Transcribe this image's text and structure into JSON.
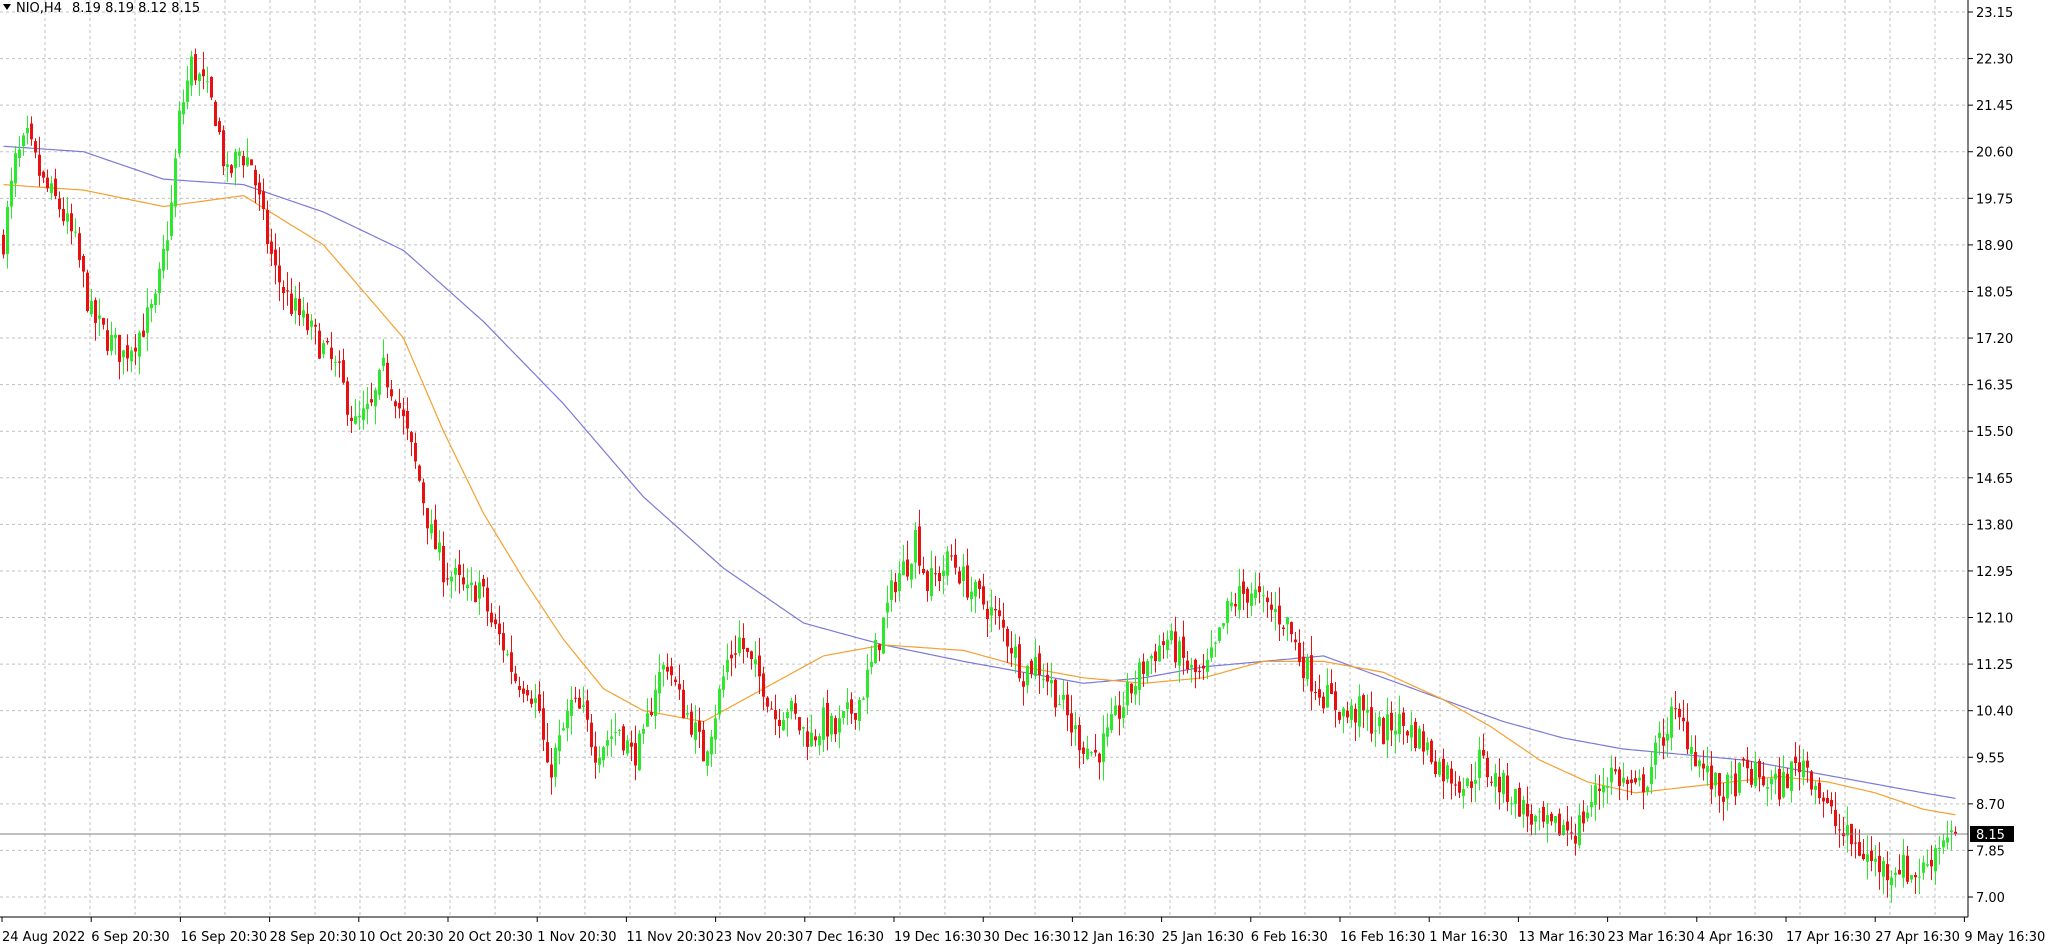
{
  "header": {
    "symbol_timeframe": "NIO,H4",
    "ohlc_text": "8.19 8.19 8.12 8.15"
  },
  "colors": {
    "background": "#ffffff",
    "grid": "#c0c0c0",
    "axis": "#000000",
    "bull_candle": "#2ee82e",
    "bear_candle": "#e81010",
    "ma_fast": "#f5a030",
    "ma_slow": "#7a7ad8",
    "price_label_bg": "#000000",
    "price_label_text": "#ffffff",
    "price_line": "#808080"
  },
  "chart_data": {
    "type": "candlestick",
    "title": "NIO,H4",
    "current_price": 8.15,
    "last_bar": {
      "open": 8.19,
      "high": 8.19,
      "low": 8.12,
      "close": 8.15
    },
    "y_axis": {
      "ticks": [
        23.15,
        22.3,
        21.45,
        20.6,
        19.75,
        18.9,
        18.05,
        17.2,
        16.35,
        15.5,
        14.65,
        13.8,
        12.95,
        12.1,
        11.25,
        10.4,
        9.55,
        8.7,
        7.85,
        7.0
      ],
      "tick_labels": [
        "23.15",
        "22.30",
        "21.45",
        "20.60",
        "19.75",
        "18.90",
        "18.05",
        "17.20",
        "16.35",
        "15.50",
        "14.65",
        "13.80",
        "12.95",
        "12.10",
        "11.25",
        "10.40",
        "9.55",
        "8.70",
        "7.85",
        "7.00"
      ],
      "range": [
        7.0,
        23.15
      ]
    },
    "x_axis": {
      "tick_labels": [
        "24 Aug 2022",
        "6 Sep 20:30",
        "16 Sep 20:30",
        "28 Sep 20:30",
        "10 Oct 20:30",
        "20 Oct 20:30",
        "1 Nov 20:30",
        "11 Nov 20:30",
        "23 Nov 20:30",
        "7 Dec 16:30",
        "19 Dec 16:30",
        "30 Dec 16:30",
        "12 Jan 16:30",
        "25 Jan 16:30",
        "6 Feb 16:30",
        "16 Feb 16:30",
        "1 Mar 16:30",
        "13 Mar 16:30",
        "23 Mar 16:30",
        "4 Apr 16:30",
        "17 Apr 16:30",
        "27 Apr 16:30",
        "9 May 16:30"
      ]
    },
    "price_path": [
      [
        0,
        19.0
      ],
      [
        3,
        20.4
      ],
      [
        6,
        20.8
      ],
      [
        10,
        20.0
      ],
      [
        14,
        19.6
      ],
      [
        18,
        18.9
      ],
      [
        22,
        17.6
      ],
      [
        26,
        17.2
      ],
      [
        30,
        16.9
      ],
      [
        34,
        17.3
      ],
      [
        38,
        17.8
      ],
      [
        42,
        19.6
      ],
      [
        44,
        21.2
      ],
      [
        47,
        22.2
      ],
      [
        50,
        21.8
      ],
      [
        53,
        21.3
      ],
      [
        56,
        20.1
      ],
      [
        59,
        20.6
      ],
      [
        62,
        20.4
      ],
      [
        65,
        19.3
      ],
      [
        68,
        18.4
      ],
      [
        72,
        17.8
      ],
      [
        76,
        17.4
      ],
      [
        80,
        17.0
      ],
      [
        84,
        16.5
      ],
      [
        88,
        15.6
      ],
      [
        92,
        15.9
      ],
      [
        95,
        16.6
      ],
      [
        98,
        16.2
      ],
      [
        101,
        15.4
      ],
      [
        104,
        14.6
      ],
      [
        107,
        13.6
      ],
      [
        110,
        13.0
      ],
      [
        113,
        12.8
      ],
      [
        116,
        12.5
      ],
      [
        119,
        12.7
      ],
      [
        122,
        12.0
      ],
      [
        125,
        11.6
      ],
      [
        128,
        11.0
      ],
      [
        131,
        10.9
      ],
      [
        134,
        10.4
      ],
      [
        136,
        9.2
      ],
      [
        139,
        9.8
      ],
      [
        142,
        10.5
      ],
      [
        145,
        10.3
      ],
      [
        148,
        9.7
      ],
      [
        151,
        9.9
      ],
      [
        154,
        10.1
      ],
      [
        157,
        9.6
      ],
      [
        160,
        9.8
      ],
      [
        163,
        10.9
      ],
      [
        166,
        11.3
      ],
      [
        169,
        10.6
      ],
      [
        172,
        10.2
      ],
      [
        175,
        9.6
      ],
      [
        178,
        10.4
      ],
      [
        181,
        11.3
      ],
      [
        184,
        11.7
      ],
      [
        187,
        11.2
      ],
      [
        190,
        10.9
      ],
      [
        193,
        10.3
      ],
      [
        196,
        10.5
      ],
      [
        199,
        10.1
      ],
      [
        202,
        9.9
      ],
      [
        205,
        10.2
      ],
      [
        208,
        10.0
      ],
      [
        211,
        10.3
      ],
      [
        214,
        10.6
      ],
      [
        217,
        11.2
      ],
      [
        220,
        12.0
      ],
      [
        223,
        12.8
      ],
      [
        226,
        13.1
      ],
      [
        228,
        13.6
      ],
      [
        231,
        12.7
      ],
      [
        234,
        12.9
      ],
      [
        237,
        13.2
      ],
      [
        240,
        12.8
      ],
      [
        243,
        12.5
      ],
      [
        246,
        12.3
      ],
      [
        249,
        12.0
      ],
      [
        252,
        11.6
      ],
      [
        255,
        11.1
      ],
      [
        258,
        11.3
      ],
      [
        261,
        11.0
      ],
      [
        264,
        10.6
      ],
      [
        267,
        10.1
      ],
      [
        270,
        9.8
      ],
      [
        273,
        9.6
      ],
      [
        276,
        9.9
      ],
      [
        279,
        10.4
      ],
      [
        282,
        10.8
      ],
      [
        285,
        11.2
      ],
      [
        288,
        11.5
      ],
      [
        291,
        11.7
      ],
      [
        294,
        11.4
      ],
      [
        297,
        11.1
      ],
      [
        300,
        11.0
      ],
      [
        303,
        11.5
      ],
      [
        306,
        12.2
      ],
      [
        309,
        12.5
      ],
      [
        312,
        12.6
      ],
      [
        315,
        12.3
      ],
      [
        318,
        12.2
      ],
      [
        321,
        12.0
      ],
      [
        324,
        11.4
      ],
      [
        327,
        11.0
      ],
      [
        330,
        10.7
      ],
      [
        333,
        10.5
      ],
      [
        336,
        10.3
      ],
      [
        339,
        10.4
      ],
      [
        342,
        10.2
      ],
      [
        345,
        10.0
      ],
      [
        348,
        10.2
      ],
      [
        351,
        10.1
      ],
      [
        354,
        9.9
      ],
      [
        357,
        9.6
      ],
      [
        360,
        9.3
      ],
      [
        363,
        9.2
      ],
      [
        366,
        9.0
      ],
      [
        369,
        9.5
      ],
      [
        372,
        9.2
      ],
      [
        375,
        9.0
      ],
      [
        378,
        8.8
      ],
      [
        381,
        8.5
      ],
      [
        384,
        8.3
      ],
      [
        387,
        8.2
      ],
      [
        390,
        8.3
      ],
      [
        393,
        8.2
      ],
      [
        396,
        8.6
      ],
      [
        399,
        9.0
      ],
      [
        402,
        9.3
      ],
      [
        405,
        9.1
      ],
      [
        408,
        8.9
      ],
      [
        411,
        9.2
      ],
      [
        414,
        9.8
      ],
      [
        417,
        10.3
      ],
      [
        420,
        10.1
      ],
      [
        423,
        9.6
      ],
      [
        426,
        9.2
      ],
      [
        429,
        8.9
      ],
      [
        432,
        9.0
      ],
      [
        435,
        9.3
      ],
      [
        438,
        9.2
      ],
      [
        441,
        9.1
      ],
      [
        444,
        9.0
      ],
      [
        447,
        9.3
      ],
      [
        450,
        9.5
      ],
      [
        453,
        9.1
      ],
      [
        456,
        8.6
      ],
      [
        459,
        8.2
      ],
      [
        462,
        8.0
      ],
      [
        465,
        7.8
      ],
      [
        468,
        7.6
      ],
      [
        471,
        7.5
      ],
      [
        474,
        7.6
      ],
      [
        477,
        7.4
      ],
      [
        480,
        7.5
      ],
      [
        483,
        7.9
      ],
      [
        486,
        8.2
      ],
      [
        488,
        8.15
      ]
    ],
    "ma_fast": [
      [
        0,
        20.0
      ],
      [
        20,
        19.9
      ],
      [
        40,
        19.6
      ],
      [
        60,
        19.8
      ],
      [
        80,
        18.9
      ],
      [
        100,
        17.2
      ],
      [
        110,
        15.5
      ],
      [
        120,
        14.0
      ],
      [
        130,
        12.8
      ],
      [
        140,
        11.7
      ],
      [
        150,
        10.8
      ],
      [
        160,
        10.4
      ],
      [
        175,
        10.2
      ],
      [
        190,
        10.8
      ],
      [
        205,
        11.4
      ],
      [
        220,
        11.6
      ],
      [
        240,
        11.5
      ],
      [
        255,
        11.2
      ],
      [
        270,
        11.0
      ],
      [
        285,
        10.9
      ],
      [
        300,
        11.0
      ],
      [
        315,
        11.3
      ],
      [
        330,
        11.3
      ],
      [
        345,
        11.1
      ],
      [
        360,
        10.6
      ],
      [
        372,
        10.1
      ],
      [
        384,
        9.5
      ],
      [
        396,
        9.1
      ],
      [
        408,
        8.9
      ],
      [
        420,
        9.0
      ],
      [
        432,
        9.1
      ],
      [
        444,
        9.2
      ],
      [
        456,
        9.1
      ],
      [
        468,
        8.9
      ],
      [
        480,
        8.6
      ],
      [
        488,
        8.5
      ]
    ],
    "ma_slow": [
      [
        0,
        20.7
      ],
      [
        20,
        20.6
      ],
      [
        40,
        20.1
      ],
      [
        60,
        20.0
      ],
      [
        80,
        19.5
      ],
      [
        100,
        18.8
      ],
      [
        120,
        17.5
      ],
      [
        140,
        16.0
      ],
      [
        160,
        14.3
      ],
      [
        180,
        13.0
      ],
      [
        200,
        12.0
      ],
      [
        220,
        11.6
      ],
      [
        240,
        11.3
      ],
      [
        255,
        11.1
      ],
      [
        270,
        10.9
      ],
      [
        285,
        11.0
      ],
      [
        300,
        11.2
      ],
      [
        315,
        11.3
      ],
      [
        330,
        11.4
      ],
      [
        345,
        11.0
      ],
      [
        360,
        10.6
      ],
      [
        375,
        10.2
      ],
      [
        390,
        9.9
      ],
      [
        405,
        9.7
      ],
      [
        420,
        9.6
      ],
      [
        435,
        9.5
      ],
      [
        450,
        9.3
      ],
      [
        465,
        9.1
      ],
      [
        480,
        8.9
      ],
      [
        488,
        8.8
      ]
    ]
  }
}
